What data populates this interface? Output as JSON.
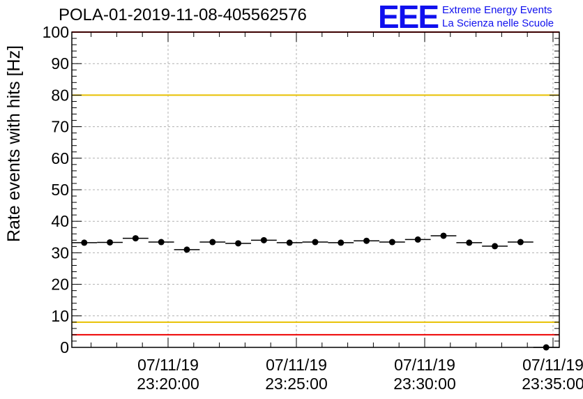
{
  "title": "POLA-01-2019-11-08-405562576",
  "logo": {
    "mark": "EEE",
    "line1": "Extreme Energy Events",
    "line2": "La Scienza nelle Scuole"
  },
  "chart_data": {
    "type": "scatter",
    "title": "POLA-01-2019-11-08-405562576",
    "xlabel": "",
    "ylabel": "Rate events with hits [Hz]",
    "ylim": [
      0,
      100
    ],
    "y_ticks": [
      0,
      10,
      20,
      30,
      40,
      50,
      60,
      70,
      80,
      90,
      100
    ],
    "x_tick_labels": [
      {
        "date": "07/11/19",
        "time": "23:20:00"
      },
      {
        "date": "07/11/19",
        "time": "23:25:00"
      },
      {
        "date": "07/11/19",
        "time": "23:30:00"
      },
      {
        "date": "07/11/19",
        "time": "23:35:00"
      }
    ],
    "grid": true,
    "reference_lines": [
      {
        "y": 80,
        "color": "#e8c000"
      },
      {
        "y": 8,
        "color": "#e8c000"
      },
      {
        "y": 4,
        "color": "#ee0000"
      },
      {
        "y": 100,
        "color": "#ee0000"
      }
    ],
    "series": [
      {
        "color": "#000000",
        "points": [
          {
            "t": "23:16:44",
            "y": 33.2
          },
          {
            "t": "23:17:44",
            "y": 33.3
          },
          {
            "t": "23:18:44",
            "y": 34.6
          },
          {
            "t": "23:19:44",
            "y": 33.4
          },
          {
            "t": "23:20:44",
            "y": 31.0
          },
          {
            "t": "23:21:44",
            "y": 33.4
          },
          {
            "t": "23:22:44",
            "y": 33.0
          },
          {
            "t": "23:23:44",
            "y": 34.0
          },
          {
            "t": "23:24:44",
            "y": 33.2
          },
          {
            "t": "23:25:44",
            "y": 33.4
          },
          {
            "t": "23:26:44",
            "y": 33.2
          },
          {
            "t": "23:27:44",
            "y": 33.8
          },
          {
            "t": "23:28:44",
            "y": 33.4
          },
          {
            "t": "23:29:44",
            "y": 34.2
          },
          {
            "t": "23:30:44",
            "y": 35.4
          },
          {
            "t": "23:31:44",
            "y": 33.2
          },
          {
            "t": "23:32:44",
            "y": 32.1
          },
          {
            "t": "23:33:44",
            "y": 33.4
          },
          {
            "t": "23:34:44",
            "y": 0
          }
        ]
      }
    ]
  }
}
